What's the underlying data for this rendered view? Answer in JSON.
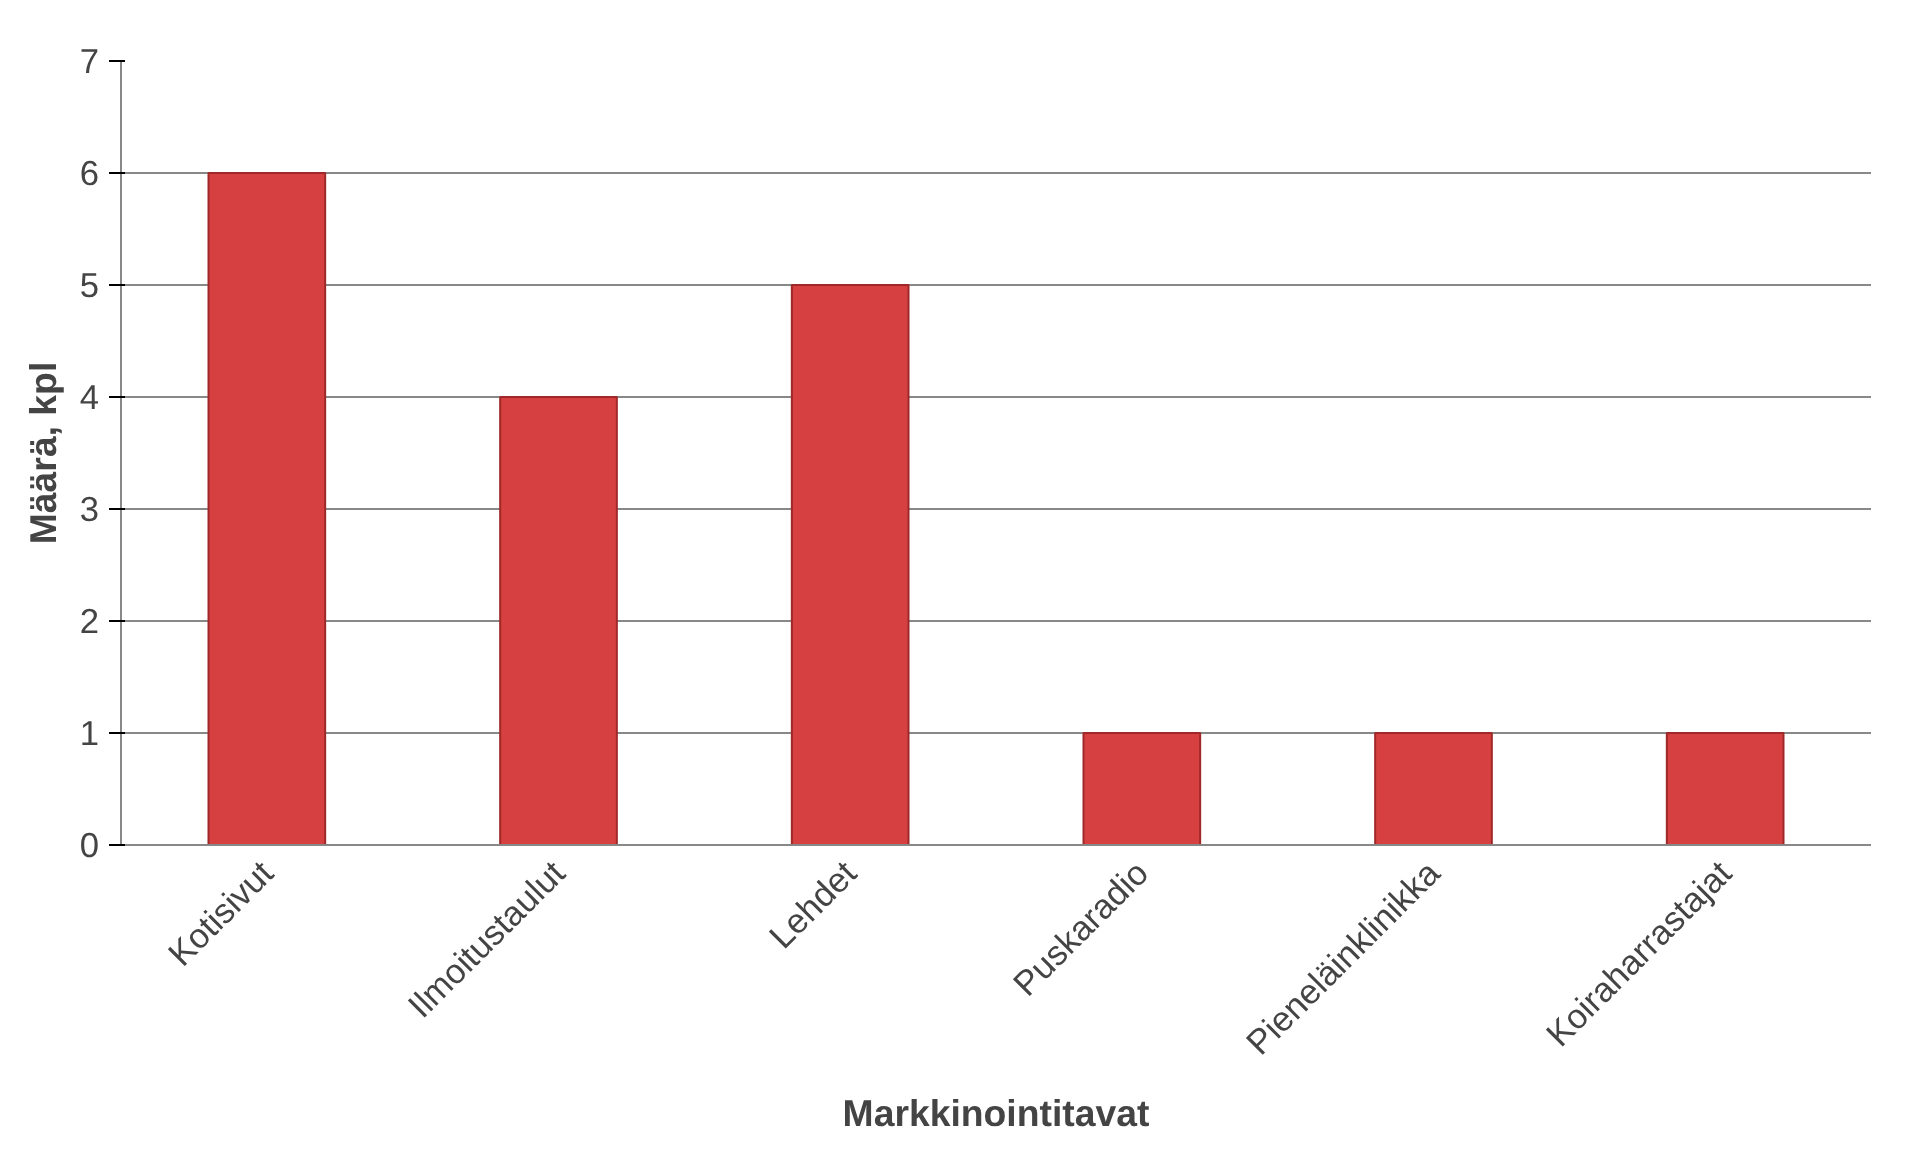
{
  "chart_data": {
    "type": "bar",
    "xlabel": "Markkinointitavat",
    "ylabel": "Määrä, kpl",
    "categories": [
      "Kotisivut",
      "Ilmoitustaulut",
      "Lehdet",
      "Puskaradio",
      "Pieneläinklinikka",
      "Koiraharrastajat"
    ],
    "values": [
      6,
      4,
      5,
      1,
      1,
      1
    ],
    "color": "#d64040",
    "ylim": [
      0,
      7
    ],
    "yticks": [
      0,
      1,
      2,
      3,
      4,
      5,
      6,
      7
    ],
    "grid": "y"
  }
}
